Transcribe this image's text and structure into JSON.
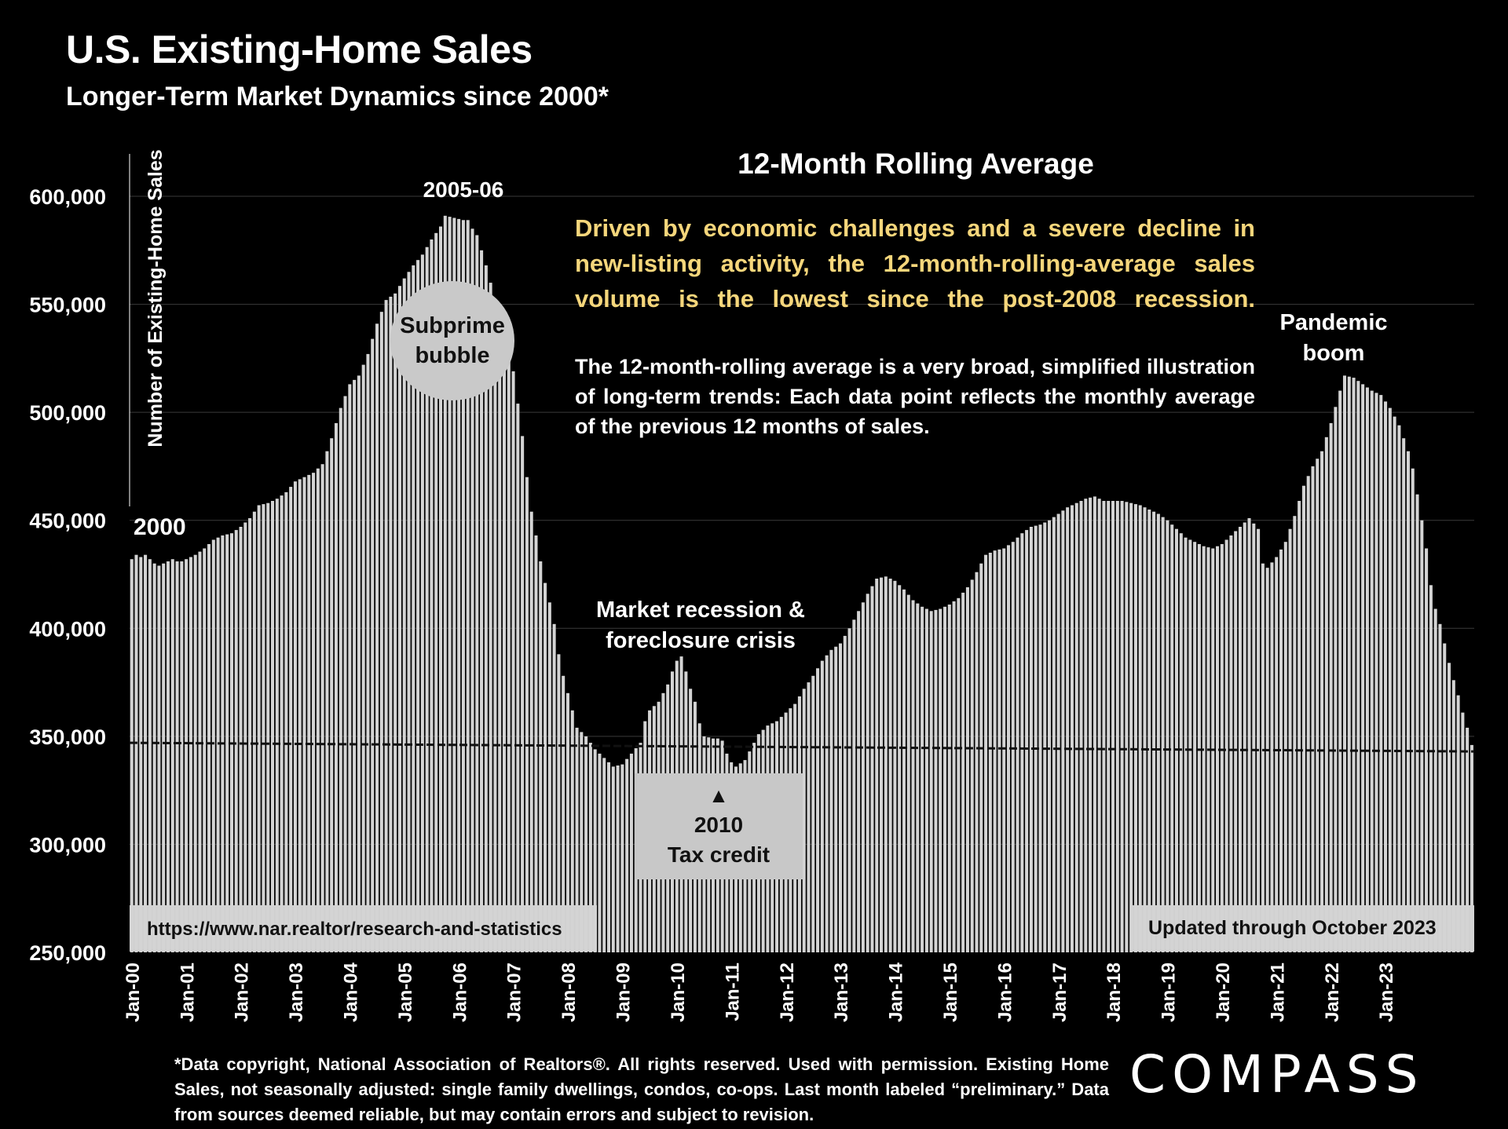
{
  "header": {
    "title": "U.S. Existing-Home Sales",
    "subtitle": "Longer-Term Market Dynamics since 2000*"
  },
  "annotations": {
    "note_highlight": [
      "Driven by economic challenges and a severe decline in",
      "new-listing activity, the 12-month-rolling-average sales",
      "volume is the lowest since the post-2008 recession."
    ],
    "note_body": "The 12-month-rolling average is a very broad, simplified illustration of long-term trends: Each data point reflects the monthly average of the previous 12 months of sales.",
    "label_2000": "2000",
    "label_peak": "2005-06",
    "bubble_line1": "Subprime",
    "bubble_line2": "bubble",
    "recession_line1": "Market recession &",
    "recession_line2": "foreclosure crisis",
    "tax_arrow": "▲",
    "tax_line1": "2010",
    "tax_line2": "Tax credit",
    "pandemic_line1": "Pandemic",
    "pandemic_line2": "boom",
    "source_url": "https://www.nar.realtor/research-and-statistics",
    "updated": "Updated through October 2023"
  },
  "footer": {
    "footnote": "*Data copyright, National Association of Realtors®. All rights reserved. Used with permission. Existing Home Sales, not seasonally adjusted:  single family dwellings, condos, co-ops. Last month labeled “preliminary.” Data from sources deemed reliable, but may contain errors and subject to revision.",
    "logo": "COMPASS"
  },
  "colors": {
    "bar": "#d4d4d4",
    "highlight": "#f5d67b",
    "bubble": "#c9c9c9",
    "box": "#c8c8c8"
  },
  "chart_data": {
    "type": "bar",
    "title": "12-Month Rolling Average",
    "ylabel": "Number of Existing-Home Sales",
    "xlabel": "",
    "ylim": [
      250000,
      600000
    ],
    "yticks": [
      250000,
      300000,
      350000,
      400000,
      450000,
      500000,
      550000,
      600000
    ],
    "ytick_labels": [
      "250,000",
      "300,000",
      "350,000",
      "400,000",
      "450,000",
      "500,000",
      "550,000",
      "600,000"
    ],
    "xtick_labels": [
      "Jan-00",
      "Jan-01",
      "Jan-02",
      "Jan-03",
      "Jan-04",
      "Jan-05",
      "Jan-06",
      "Jan-07",
      "Jan-08",
      "Jan-09",
      "Jan-10",
      "Jan-11",
      "Jan-12",
      "Jan-13",
      "Jan-14",
      "Jan-15",
      "Jan-16",
      "Jan-17",
      "Jan-18",
      "Jan-19",
      "Jan-20",
      "Jan-21",
      "Jan-22",
      "Jan-23"
    ],
    "start": "Jan-00",
    "frequency": "monthly",
    "reference_line": {
      "style": "dashed",
      "start": 347000,
      "end": 343000
    },
    "anchors": [
      [
        0,
        432000
      ],
      [
        1,
        434000
      ],
      [
        2,
        433000
      ],
      [
        3,
        434000
      ],
      [
        4,
        432000
      ],
      [
        5,
        430000
      ],
      [
        6,
        429000
      ],
      [
        7,
        430000
      ],
      [
        8,
        431000
      ],
      [
        9,
        432000
      ],
      [
        10,
        431000
      ],
      [
        11,
        431000
      ],
      [
        12,
        432000
      ],
      [
        14,
        434000
      ],
      [
        16,
        437000
      ],
      [
        18,
        441000
      ],
      [
        20,
        443000
      ],
      [
        22,
        444000
      ],
      [
        24,
        447000
      ],
      [
        26,
        451000
      ],
      [
        28,
        457000
      ],
      [
        30,
        458000
      ],
      [
        32,
        460000
      ],
      [
        34,
        463000
      ],
      [
        36,
        468000
      ],
      [
        38,
        470000
      ],
      [
        40,
        472000
      ],
      [
        42,
        476000
      ],
      [
        44,
        488000
      ],
      [
        46,
        502000
      ],
      [
        48,
        513000
      ],
      [
        50,
        517000
      ],
      [
        52,
        527000
      ],
      [
        54,
        541000
      ],
      [
        56,
        552000
      ],
      [
        58,
        555000
      ],
      [
        60,
        562000
      ],
      [
        62,
        568000
      ],
      [
        64,
        573000
      ],
      [
        66,
        580000
      ],
      [
        68,
        586000
      ],
      [
        69,
        591000
      ],
      [
        71,
        590000
      ],
      [
        73,
        589000
      ],
      [
        74,
        589000
      ],
      [
        75,
        585000
      ],
      [
        76,
        582000
      ],
      [
        77,
        575000
      ],
      [
        78,
        568000
      ],
      [
        79,
        560000
      ],
      [
        80,
        550000
      ],
      [
        82,
        538000
      ],
      [
        83,
        530000
      ],
      [
        84,
        519000
      ],
      [
        85,
        504000
      ],
      [
        86,
        489000
      ],
      [
        87,
        470000
      ],
      [
        88,
        454000
      ],
      [
        89,
        443000
      ],
      [
        90,
        431000
      ],
      [
        91,
        421000
      ],
      [
        92,
        412000
      ],
      [
        93,
        402000
      ],
      [
        94,
        388000
      ],
      [
        95,
        378000
      ],
      [
        96,
        370000
      ],
      [
        97,
        362000
      ],
      [
        98,
        354000
      ],
      [
        99,
        352000
      ],
      [
        100,
        350000
      ],
      [
        102,
        344000
      ],
      [
        104,
        340000
      ],
      [
        106,
        336000
      ],
      [
        108,
        337000
      ],
      [
        110,
        342000
      ],
      [
        112,
        347000
      ],
      [
        113,
        357000
      ],
      [
        114,
        362000
      ],
      [
        116,
        366000
      ],
      [
        118,
        374000
      ],
      [
        119,
        380000
      ],
      [
        120,
        385000
      ],
      [
        121,
        387000
      ],
      [
        122,
        380000
      ],
      [
        123,
        372000
      ],
      [
        124,
        366000
      ],
      [
        125,
        356000
      ],
      [
        126,
        350000
      ],
      [
        128,
        349000
      ],
      [
        129,
        349000
      ],
      [
        130,
        348000
      ],
      [
        131,
        342000
      ],
      [
        132,
        338000
      ],
      [
        133,
        336000
      ],
      [
        135,
        339000
      ],
      [
        137,
        347000
      ],
      [
        138,
        351000
      ],
      [
        140,
        355000
      ],
      [
        142,
        357000
      ],
      [
        144,
        361000
      ],
      [
        146,
        365000
      ],
      [
        148,
        372000
      ],
      [
        150,
        378000
      ],
      [
        152,
        385000
      ],
      [
        154,
        390000
      ],
      [
        156,
        393000
      ],
      [
        158,
        400000
      ],
      [
        160,
        408000
      ],
      [
        162,
        416000
      ],
      [
        164,
        423000
      ],
      [
        166,
        424000
      ],
      [
        168,
        422000
      ],
      [
        170,
        418000
      ],
      [
        172,
        413000
      ],
      [
        174,
        410000
      ],
      [
        176,
        408000
      ],
      [
        178,
        409000
      ],
      [
        180,
        411000
      ],
      [
        182,
        414000
      ],
      [
        184,
        419000
      ],
      [
        186,
        426000
      ],
      [
        188,
        434000
      ],
      [
        190,
        436000
      ],
      [
        192,
        437000
      ],
      [
        194,
        440000
      ],
      [
        196,
        444000
      ],
      [
        198,
        447000
      ],
      [
        200,
        448000
      ],
      [
        202,
        450000
      ],
      [
        204,
        453000
      ],
      [
        206,
        456000
      ],
      [
        208,
        458000
      ],
      [
        210,
        460000
      ],
      [
        212,
        461000
      ],
      [
        214,
        459000
      ],
      [
        216,
        459000
      ],
      [
        218,
        459000
      ],
      [
        220,
        458000
      ],
      [
        222,
        457000
      ],
      [
        224,
        455000
      ],
      [
        226,
        453000
      ],
      [
        228,
        450000
      ],
      [
        230,
        446000
      ],
      [
        232,
        442000
      ],
      [
        234,
        440000
      ],
      [
        236,
        438000
      ],
      [
        238,
        437000
      ],
      [
        240,
        439000
      ],
      [
        242,
        443000
      ],
      [
        244,
        447000
      ],
      [
        246,
        451000
      ],
      [
        248,
        446000
      ],
      [
        249,
        430000
      ],
      [
        250,
        428000
      ],
      [
        252,
        433000
      ],
      [
        254,
        440000
      ],
      [
        256,
        452000
      ],
      [
        258,
        466000
      ],
      [
        260,
        475000
      ],
      [
        262,
        482000
      ],
      [
        264,
        495000
      ],
      [
        266,
        510000
      ],
      [
        267,
        517000
      ],
      [
        269,
        516000
      ],
      [
        271,
        513000
      ],
      [
        273,
        510000
      ],
      [
        275,
        508000
      ],
      [
        277,
        502000
      ],
      [
        279,
        494000
      ],
      [
        281,
        482000
      ],
      [
        282,
        474000
      ],
      [
        283,
        462000
      ],
      [
        284,
        450000
      ],
      [
        285,
        437000
      ],
      [
        286,
        420000
      ],
      [
        287,
        409000
      ],
      [
        288,
        402000
      ],
      [
        289,
        393000
      ],
      [
        290,
        384000
      ],
      [
        291,
        376000
      ],
      [
        292,
        369000
      ],
      [
        293,
        361000
      ],
      [
        294,
        354000
      ],
      [
        295,
        346000
      ]
    ]
  }
}
